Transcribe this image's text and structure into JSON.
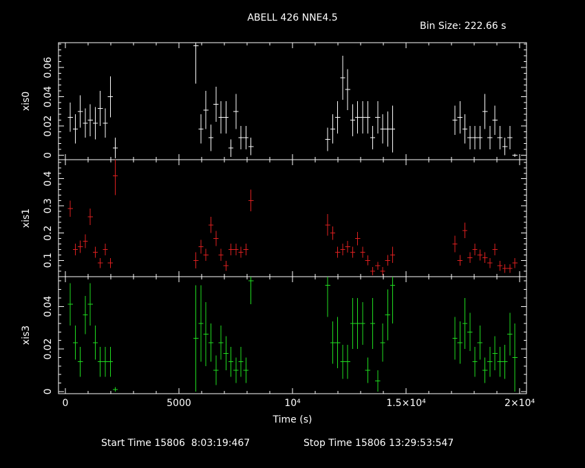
{
  "header": {
    "title": "ABELL 426 NNE4.5",
    "bin_size": "Bin Size: 222.66 s"
  },
  "footer": {
    "start": "Start Time 15806  8:03:19:467",
    "stop": "Stop Time 15806 13:29:53:547"
  },
  "colors": {
    "xis0": "#ffffff",
    "xis1": "#e02020",
    "xis3": "#20e020",
    "frame": "#ffffff",
    "background": "#000000"
  },
  "chart_data": {
    "type": "scatter",
    "title": "ABELL 426 NNE4.5",
    "xlabel": "Time (s)",
    "xlim": [
      -300,
      20300
    ],
    "xticks": [
      0,
      5000,
      10000,
      15000,
      20000
    ],
    "xtick_labels": [
      "0",
      "5000",
      "10⁴",
      "1.5×10⁴",
      "2×10⁴"
    ],
    "bin_half_width": 111.33,
    "panels": [
      {
        "name": "xis0",
        "ylabel": "xis0",
        "ylim": [
          -0.003,
          0.077
        ],
        "yticks": [
          0,
          0.02,
          0.04,
          0.06
        ],
        "ytick_labels": [
          "0",
          "0.02",
          "0.04",
          "0.06"
        ],
        "x": [
          220,
          440,
          660,
          880,
          1100,
          1320,
          1540,
          1760,
          1980,
          2200,
          5750,
          5970,
          6190,
          6410,
          6630,
          6850,
          7070,
          7290,
          7510,
          7730,
          7950,
          8170,
          11550,
          11770,
          11990,
          12210,
          12430,
          12650,
          12870,
          13090,
          13310,
          13530,
          13750,
          13970,
          14190,
          14410,
          17150,
          17370,
          17590,
          17810,
          18030,
          18250,
          18470,
          18690,
          18910,
          19130,
          19350,
          19570,
          19790
        ],
        "y": [
          0.026,
          0.018,
          0.03,
          0.022,
          0.024,
          0.022,
          0.032,
          0.022,
          0.04,
          0.005,
          0.075,
          0.018,
          0.031,
          0.012,
          0.035,
          0.026,
          0.026,
          0.005,
          0.03,
          0.012,
          0.012,
          0.006,
          0.011,
          0.018,
          0.026,
          0.053,
          0.045,
          0.024,
          0.026,
          0.026,
          0.026,
          0.012,
          0.026,
          0.018,
          0.018,
          0.018,
          0.024,
          0.026,
          0.018,
          0.012,
          0.012,
          0.012,
          0.03,
          0.012,
          0.024,
          0.012,
          0.006,
          0.012,
          0.0
        ],
        "err": [
          0.01,
          0.01,
          0.011,
          0.01,
          0.011,
          0.011,
          0.012,
          0.01,
          0.014,
          0.007,
          0.026,
          0.01,
          0.013,
          0.009,
          0.012,
          0.011,
          0.011,
          0.006,
          0.012,
          0.008,
          0.008,
          0.006,
          0.008,
          0.01,
          0.011,
          0.015,
          0.014,
          0.011,
          0.011,
          0.011,
          0.011,
          0.008,
          0.011,
          0.01,
          0.012,
          0.016,
          0.01,
          0.011,
          0.01,
          0.008,
          0.008,
          0.008,
          0.012,
          0.008,
          0.01,
          0.008,
          0.006,
          0.008,
          0.001
        ]
      },
      {
        "name": "xis1",
        "ylabel": "xis1",
        "ylim": [
          0.04,
          0.47
        ],
        "yticks": [
          0.1,
          0.2,
          0.3,
          0.4
        ],
        "ytick_labels": [
          "0.1",
          "0.2",
          "0.3",
          "0.4"
        ],
        "x": [
          220,
          440,
          660,
          880,
          1100,
          1320,
          1540,
          1760,
          1980,
          2200,
          5750,
          5970,
          6190,
          6410,
          6630,
          6850,
          7070,
          7290,
          7510,
          7730,
          7950,
          8170,
          11550,
          11770,
          11990,
          12210,
          12430,
          12650,
          12870,
          13090,
          13310,
          13530,
          13750,
          13970,
          14190,
          14410,
          17150,
          17370,
          17590,
          17810,
          18030,
          18250,
          18470,
          18690,
          18910,
          19130,
          19350,
          19570,
          19790
        ],
        "y": [
          0.29,
          0.14,
          0.15,
          0.17,
          0.26,
          0.13,
          0.09,
          0.14,
          0.09,
          0.41,
          0.1,
          0.15,
          0.12,
          0.23,
          0.18,
          0.12,
          0.08,
          0.14,
          0.14,
          0.13,
          0.14,
          0.32,
          0.23,
          0.2,
          0.13,
          0.14,
          0.15,
          0.13,
          0.18,
          0.13,
          0.1,
          0.06,
          0.08,
          0.06,
          0.1,
          0.12,
          0.16,
          0.1,
          0.21,
          0.11,
          0.14,
          0.12,
          0.11,
          0.09,
          0.14,
          0.08,
          0.07,
          0.07,
          0.09
        ],
        "err": [
          0.03,
          0.022,
          0.023,
          0.025,
          0.03,
          0.02,
          0.018,
          0.022,
          0.018,
          0.07,
          0.03,
          0.025,
          0.022,
          0.03,
          0.028,
          0.022,
          0.018,
          0.022,
          0.022,
          0.02,
          0.022,
          0.04,
          0.04,
          0.025,
          0.02,
          0.022,
          0.022,
          0.02,
          0.025,
          0.02,
          0.018,
          0.015,
          0.015,
          0.015,
          0.02,
          0.03,
          0.03,
          0.02,
          0.028,
          0.02,
          0.022,
          0.02,
          0.02,
          0.018,
          0.022,
          0.018,
          0.016,
          0.016,
          0.018
        ]
      },
      {
        "name": "xis3",
        "ylabel": "xis3",
        "ylim": [
          -0.001,
          0.054
        ],
        "yticks": [
          0,
          0.02,
          0.04
        ],
        "ytick_labels": [
          "0",
          "0.02",
          "0.04"
        ],
        "x": [
          220,
          440,
          660,
          880,
          1100,
          1320,
          1540,
          1760,
          1980,
          2200,
          5750,
          5970,
          6190,
          6410,
          6630,
          6850,
          7070,
          7290,
          7510,
          7730,
          7950,
          8170,
          11550,
          11770,
          11990,
          12210,
          12430,
          12650,
          12870,
          13090,
          13310,
          13530,
          13750,
          13970,
          14190,
          14410,
          17150,
          17370,
          17590,
          17810,
          18030,
          18250,
          18470,
          18690,
          18910,
          19130,
          19350,
          19570,
          19790
        ],
        "y": [
          0.041,
          0.023,
          0.014,
          0.036,
          0.041,
          0.023,
          0.014,
          0.014,
          0.014,
          0.001,
          0.025,
          0.032,
          0.027,
          0.023,
          0.01,
          0.023,
          0.018,
          0.014,
          0.01,
          0.014,
          0.01,
          0.052,
          0.05,
          0.023,
          0.023,
          0.014,
          0.014,
          0.032,
          0.032,
          0.032,
          0.01,
          0.032,
          0.005,
          0.023,
          0.036,
          0.05,
          0.025,
          0.023,
          0.032,
          0.028,
          0.014,
          0.023,
          0.01,
          0.014,
          0.018,
          0.014,
          0.014,
          0.027,
          0.016
        ],
        "err": [
          0.01,
          0.008,
          0.007,
          0.009,
          0.01,
          0.008,
          0.007,
          0.007,
          0.007,
          0.001,
          0.025,
          0.018,
          0.015,
          0.009,
          0.007,
          0.008,
          0.008,
          0.007,
          0.006,
          0.007,
          0.006,
          0.011,
          0.015,
          0.01,
          0.012,
          0.008,
          0.008,
          0.012,
          0.012,
          0.01,
          0.006,
          0.012,
          0.005,
          0.009,
          0.012,
          0.018,
          0.01,
          0.01,
          0.012,
          0.009,
          0.007,
          0.008,
          0.006,
          0.007,
          0.008,
          0.007,
          0.008,
          0.01,
          0.016
        ]
      }
    ]
  }
}
